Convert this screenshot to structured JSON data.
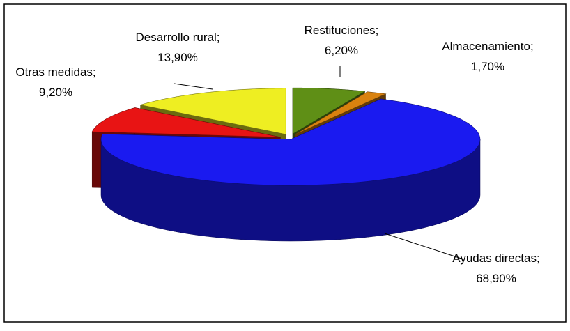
{
  "chart_data": {
    "type": "pie3d",
    "categories": [
      "Restituciones",
      "Almacenamiento",
      "Ayudas directas",
      "Otras medidas",
      "Desarrollo rural"
    ],
    "values": [
      6.2,
      1.7,
      68.9,
      9.2,
      13.9
    ],
    "value_labels": [
      "6,20%",
      "1,70%",
      "68,90%",
      "9,20%",
      "13,90%"
    ],
    "label_separator": ";",
    "colors": [
      "#5f8f16",
      "#d9820f",
      "#1a1af0",
      "#e81414",
      "#eeee22"
    ]
  }
}
